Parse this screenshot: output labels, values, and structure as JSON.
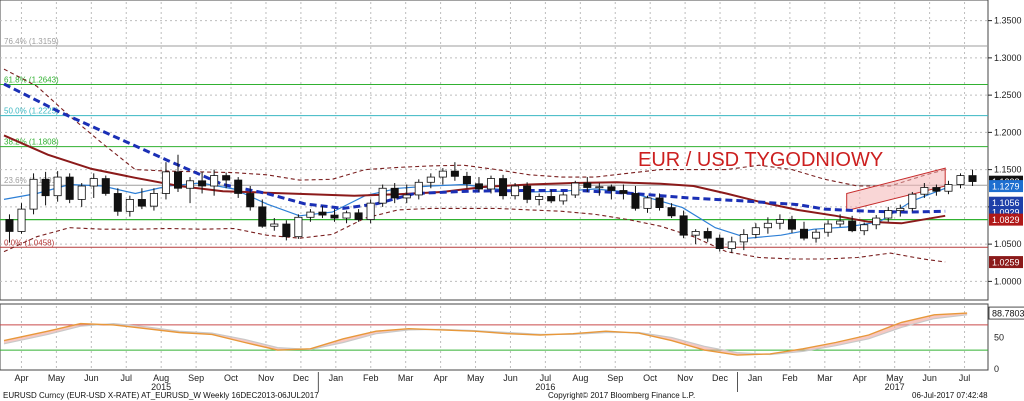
{
  "chart_data": {
    "type": "candlestick",
    "title": "EUR / USD TYGODNIOWY",
    "timeframe": "weekly",
    "ylim": [
      0.975,
      1.375
    ],
    "y_ticks": [
      "1.0000",
      "1.0500",
      "1.1000",
      "1.1500",
      "1.2000",
      "1.2500",
      "1.3000",
      "1.3500"
    ],
    "months": [
      "Apr",
      "May",
      "Jun",
      "Jul",
      "Aug",
      "Sep",
      "Oct",
      "Nov",
      "Dec",
      "Jan",
      "Feb",
      "Mar",
      "Apr",
      "May",
      "Jun",
      "Jul",
      "Aug",
      "Sep",
      "Oct",
      "Nov",
      "Dec",
      "Jan",
      "Feb",
      "Mar",
      "Apr",
      "May",
      "Jun",
      "Jul"
    ],
    "years": [
      "2015",
      "2016",
      "2017"
    ],
    "fib_levels": [
      {
        "label": "76.4% (1.3159)",
        "value": 1.3159,
        "color": "#9e9e9e"
      },
      {
        "label": "61.8% (1.2643)",
        "value": 1.2643,
        "color": "#31b131"
      },
      {
        "label": "50.0% (1.2225)",
        "value": 1.2225,
        "color": "#39b7c2"
      },
      {
        "label": "38.2% (1.1808)",
        "value": 1.1808,
        "color": "#31b131"
      },
      {
        "label": "23.6% (1.1291)",
        "value": 1.1291,
        "color": "#9e9e9e"
      },
      {
        "label": "0.0% (1.0458)",
        "value": 1.0458,
        "color": "#b53a3a"
      }
    ],
    "extra_levels": [
      1.0829
    ],
    "price_badges": [
      {
        "value": 1.1338,
        "label": "1.1338",
        "bg": "#111111",
        "fg": "#ffffff"
      },
      {
        "value": 1.1279,
        "label": "1.1279",
        "bg": "#1e6fd0",
        "fg": "#ffffff"
      },
      {
        "value": 1.1056,
        "label": "1.1056",
        "bg": "#1e3fa8",
        "fg": "#ffffff"
      },
      {
        "value": 1.0929,
        "label": "1.0929",
        "bg": "#1e3fa8",
        "fg": "#ffffff"
      },
      {
        "value": 1.0829,
        "label": "1.0829",
        "bg": "#b01818",
        "fg": "#ffffff"
      },
      {
        "value": 1.0259,
        "label": "1.0259",
        "bg": "#8b1a1a",
        "fg": "#ffffff"
      }
    ],
    "candles": [
      [
        1.083,
        1.09,
        1.052,
        1.067
      ],
      [
        1.067,
        1.105,
        1.064,
        1.097
      ],
      [
        1.097,
        1.145,
        1.09,
        1.137
      ],
      [
        1.137,
        1.147,
        1.102,
        1.115
      ],
      [
        1.115,
        1.148,
        1.107,
        1.14
      ],
      [
        1.14,
        1.145,
        1.105,
        1.11
      ],
      [
        1.11,
        1.132,
        1.1,
        1.128
      ],
      [
        1.128,
        1.145,
        1.112,
        1.138
      ],
      [
        1.138,
        1.142,
        1.115,
        1.118
      ],
      [
        1.118,
        1.125,
        1.088,
        1.094
      ],
      [
        1.094,
        1.115,
        1.087,
        1.11
      ],
      [
        1.11,
        1.125,
        1.097,
        1.101
      ],
      [
        1.101,
        1.125,
        1.095,
        1.118
      ],
      [
        1.118,
        1.16,
        1.11,
        1.147
      ],
      [
        1.147,
        1.17,
        1.12,
        1.125
      ],
      [
        1.125,
        1.14,
        1.105,
        1.135
      ],
      [
        1.135,
        1.147,
        1.118,
        1.128
      ],
      [
        1.128,
        1.15,
        1.115,
        1.142
      ],
      [
        1.142,
        1.146,
        1.125,
        1.136
      ],
      [
        1.136,
        1.14,
        1.112,
        1.118
      ],
      [
        1.118,
        1.128,
        1.095,
        1.1
      ],
      [
        1.1,
        1.11,
        1.072,
        1.074
      ],
      [
        1.074,
        1.085,
        1.068,
        1.077
      ],
      [
        1.077,
        1.082,
        1.055,
        1.06
      ],
      [
        1.06,
        1.09,
        1.057,
        1.086
      ],
      [
        1.086,
        1.097,
        1.08,
        1.093
      ],
      [
        1.093,
        1.101,
        1.085,
        1.089
      ],
      [
        1.089,
        1.097,
        1.08,
        1.085
      ],
      [
        1.085,
        1.095,
        1.078,
        1.092
      ],
      [
        1.092,
        1.097,
        1.08,
        1.083
      ],
      [
        1.083,
        1.11,
        1.078,
        1.105
      ],
      [
        1.105,
        1.13,
        1.1,
        1.125
      ],
      [
        1.125,
        1.132,
        1.105,
        1.112
      ],
      [
        1.112,
        1.13,
        1.105,
        1.116
      ],
      [
        1.116,
        1.137,
        1.11,
        1.133
      ],
      [
        1.133,
        1.145,
        1.125,
        1.14
      ],
      [
        1.14,
        1.152,
        1.13,
        1.148
      ],
      [
        1.148,
        1.16,
        1.135,
        1.141
      ],
      [
        1.141,
        1.147,
        1.125,
        1.131
      ],
      [
        1.131,
        1.14,
        1.12,
        1.124
      ],
      [
        1.124,
        1.142,
        1.118,
        1.138
      ],
      [
        1.138,
        1.143,
        1.11,
        1.115
      ],
      [
        1.115,
        1.132,
        1.11,
        1.128
      ],
      [
        1.128,
        1.133,
        1.105,
        1.11
      ],
      [
        1.11,
        1.118,
        1.102,
        1.114
      ],
      [
        1.114,
        1.123,
        1.105,
        1.108
      ],
      [
        1.108,
        1.12,
        1.103,
        1.116
      ],
      [
        1.116,
        1.135,
        1.112,
        1.132
      ],
      [
        1.132,
        1.14,
        1.12,
        1.126
      ],
      [
        1.126,
        1.132,
        1.115,
        1.127
      ],
      [
        1.127,
        1.13,
        1.11,
        1.122
      ],
      [
        1.122,
        1.13,
        1.11,
        1.118
      ],
      [
        1.118,
        1.128,
        1.095,
        1.098
      ],
      [
        1.098,
        1.115,
        1.092,
        1.112
      ],
      [
        1.112,
        1.118,
        1.095,
        1.099
      ],
      [
        1.099,
        1.105,
        1.085,
        1.088
      ],
      [
        1.088,
        1.095,
        1.058,
        1.062
      ],
      [
        1.062,
        1.07,
        1.05,
        1.067
      ],
      [
        1.067,
        1.072,
        1.053,
        1.058
      ],
      [
        1.058,
        1.063,
        1.04,
        1.044
      ],
      [
        1.044,
        1.06,
        1.038,
        1.053
      ],
      [
        1.053,
        1.07,
        1.042,
        1.063
      ],
      [
        1.063,
        1.078,
        1.058,
        1.072
      ],
      [
        1.072,
        1.086,
        1.064,
        1.078
      ],
      [
        1.078,
        1.09,
        1.07,
        1.083
      ],
      [
        1.083,
        1.088,
        1.065,
        1.07
      ],
      [
        1.07,
        1.08,
        1.055,
        1.058
      ],
      [
        1.058,
        1.07,
        1.052,
        1.066
      ],
      [
        1.066,
        1.082,
        1.06,
        1.077
      ],
      [
        1.077,
        1.09,
        1.073,
        1.081
      ],
      [
        1.081,
        1.088,
        1.066,
        1.068
      ],
      [
        1.068,
        1.079,
        1.062,
        1.076
      ],
      [
        1.076,
        1.089,
        1.07,
        1.085
      ],
      [
        1.085,
        1.1,
        1.08,
        1.095
      ],
      [
        1.095,
        1.103,
        1.087,
        1.098
      ],
      [
        1.098,
        1.12,
        1.094,
        1.117
      ],
      [
        1.117,
        1.132,
        1.112,
        1.126
      ],
      [
        1.126,
        1.13,
        1.115,
        1.121
      ],
      [
        1.121,
        1.135,
        1.117,
        1.13
      ],
      [
        1.13,
        1.145,
        1.125,
        1.142
      ],
      [
        1.142,
        1.15,
        1.128,
        1.134
      ]
    ],
    "ma_blue_dashed": [
      [
        0,
        1.265
      ],
      [
        10,
        1.228
      ],
      [
        20,
        1.195
      ],
      [
        30,
        1.162
      ],
      [
        40,
        1.13
      ],
      [
        48,
        1.118
      ],
      [
        55,
        1.104
      ],
      [
        62,
        1.098
      ],
      [
        68,
        1.104
      ],
      [
        75,
        1.118
      ],
      [
        85,
        1.121
      ],
      [
        95,
        1.122
      ],
      [
        105,
        1.122
      ],
      [
        115,
        1.118
      ],
      [
        125,
        1.112
      ],
      [
        135,
        1.108
      ],
      [
        145,
        1.103
      ],
      [
        150,
        1.097
      ],
      [
        158,
        1.094
      ],
      [
        165,
        1.093
      ],
      [
        172,
        1.094
      ]
    ],
    "ma_red": [
      [
        0,
        1.196
      ],
      [
        8,
        1.17
      ],
      [
        16,
        1.151
      ],
      [
        24,
        1.139
      ],
      [
        32,
        1.128
      ],
      [
        40,
        1.121
      ],
      [
        48,
        1.119
      ],
      [
        56,
        1.117
      ],
      [
        64,
        1.115
      ],
      [
        72,
        1.117
      ],
      [
        80,
        1.12
      ],
      [
        88,
        1.127
      ],
      [
        96,
        1.13
      ],
      [
        104,
        1.132
      ],
      [
        112,
        1.133
      ],
      [
        120,
        1.131
      ],
      [
        126,
        1.128
      ],
      [
        132,
        1.118
      ],
      [
        138,
        1.107
      ],
      [
        145,
        1.096
      ],
      [
        152,
        1.088
      ],
      [
        158,
        1.08
      ],
      [
        164,
        1.078
      ],
      [
        172,
        1.088
      ]
    ],
    "ma_blue_thin": [
      [
        0,
        1.11
      ],
      [
        6,
        1.118
      ],
      [
        12,
        1.13
      ],
      [
        18,
        1.128
      ],
      [
        24,
        1.118
      ],
      [
        30,
        1.128
      ],
      [
        36,
        1.132
      ],
      [
        42,
        1.124
      ],
      [
        48,
        1.104
      ],
      [
        54,
        1.088
      ],
      [
        60,
        1.093
      ],
      [
        66,
        1.115
      ],
      [
        72,
        1.125
      ],
      [
        78,
        1.128
      ],
      [
        84,
        1.13
      ],
      [
        90,
        1.124
      ],
      [
        96,
        1.12
      ],
      [
        102,
        1.121
      ],
      [
        108,
        1.124
      ],
      [
        114,
        1.12
      ],
      [
        118,
        1.112
      ],
      [
        124,
        1.099
      ],
      [
        130,
        1.072
      ],
      [
        136,
        1.058
      ],
      [
        142,
        1.062
      ],
      [
        148,
        1.07
      ],
      [
        154,
        1.073
      ],
      [
        160,
        1.08
      ],
      [
        166,
        1.108
      ],
      [
        172,
        1.125
      ]
    ],
    "band_upper": [
      [
        0,
        1.285
      ],
      [
        6,
        1.262
      ],
      [
        12,
        1.222
      ],
      [
        18,
        1.185
      ],
      [
        24,
        1.15
      ],
      [
        30,
        1.148
      ],
      [
        36,
        1.147
      ],
      [
        42,
        1.146
      ],
      [
        48,
        1.143
      ],
      [
        54,
        1.136
      ],
      [
        60,
        1.137
      ],
      [
        66,
        1.15
      ],
      [
        72,
        1.153
      ],
      [
        78,
        1.155
      ],
      [
        84,
        1.156
      ],
      [
        90,
        1.15
      ],
      [
        96,
        1.143
      ],
      [
        102,
        1.14
      ],
      [
        108,
        1.14
      ],
      [
        114,
        1.145
      ],
      [
        120,
        1.15
      ],
      [
        126,
        1.15
      ],
      [
        132,
        1.15
      ],
      [
        138,
        1.156
      ],
      [
        144,
        1.15
      ],
      [
        150,
        1.137
      ],
      [
        156,
        1.128
      ],
      [
        162,
        1.128
      ],
      [
        168,
        1.142
      ],
      [
        172,
        1.15
      ]
    ],
    "band_lower": [
      [
        0,
        1.04
      ],
      [
        6,
        1.06
      ],
      [
        12,
        1.072
      ],
      [
        18,
        1.07
      ],
      [
        24,
        1.07
      ],
      [
        30,
        1.071
      ],
      [
        36,
        1.07
      ],
      [
        42,
        1.071
      ],
      [
        48,
        1.062
      ],
      [
        54,
        1.058
      ],
      [
        60,
        1.063
      ],
      [
        66,
        1.085
      ],
      [
        72,
        1.096
      ],
      [
        78,
        1.098
      ],
      [
        84,
        1.098
      ],
      [
        90,
        1.098
      ],
      [
        96,
        1.096
      ],
      [
        102,
        1.094
      ],
      [
        108,
        1.09
      ],
      [
        114,
        1.083
      ],
      [
        120,
        1.074
      ],
      [
        126,
        1.06
      ],
      [
        132,
        1.04
      ],
      [
        138,
        1.032
      ],
      [
        144,
        1.03
      ],
      [
        150,
        1.03
      ],
      [
        156,
        1.032
      ],
      [
        162,
        1.038
      ],
      [
        168,
        1.03
      ],
      [
        172,
        1.026
      ]
    ],
    "channel": {
      "from": [
        154,
        1.095,
        1.118
      ],
      "to": [
        172,
        1.128,
        1.152
      ]
    },
    "oscillator": {
      "ylim": [
        0,
        100
      ],
      "y_ticks": [
        "0",
        "50"
      ],
      "last": 88.7803,
      "last_label": "88.7803",
      "upper_line": 70,
      "lower_line": 30,
      "values": [
        [
          0,
          45
        ],
        [
          8,
          60
        ],
        [
          14,
          72
        ],
        [
          20,
          70
        ],
        [
          26,
          64
        ],
        [
          32,
          58
        ],
        [
          38,
          55
        ],
        [
          44,
          42
        ],
        [
          50,
          30
        ],
        [
          56,
          32
        ],
        [
          62,
          48
        ],
        [
          68,
          60
        ],
        [
          74,
          64
        ],
        [
          80,
          62
        ],
        [
          86,
          60
        ],
        [
          92,
          56
        ],
        [
          98,
          54
        ],
        [
          104,
          56
        ],
        [
          110,
          60
        ],
        [
          116,
          57
        ],
        [
          122,
          45
        ],
        [
          128,
          30
        ],
        [
          134,
          22
        ],
        [
          140,
          24
        ],
        [
          146,
          32
        ],
        [
          152,
          42
        ],
        [
          158,
          54
        ],
        [
          164,
          74
        ],
        [
          170,
          86
        ],
        [
          176,
          88.78
        ]
      ],
      "signal": [
        [
          0,
          40
        ],
        [
          8,
          55
        ],
        [
          14,
          68
        ],
        [
          20,
          72
        ],
        [
          26,
          67
        ],
        [
          32,
          60
        ],
        [
          38,
          57
        ],
        [
          44,
          47
        ],
        [
          50,
          34
        ],
        [
          56,
          31
        ],
        [
          62,
          42
        ],
        [
          68,
          56
        ],
        [
          74,
          62
        ],
        [
          80,
          63
        ],
        [
          86,
          61
        ],
        [
          92,
          58
        ],
        [
          98,
          55
        ],
        [
          104,
          55
        ],
        [
          110,
          58
        ],
        [
          116,
          58
        ],
        [
          122,
          50
        ],
        [
          128,
          36
        ],
        [
          134,
          26
        ],
        [
          140,
          23
        ],
        [
          146,
          28
        ],
        [
          152,
          37
        ],
        [
          158,
          48
        ],
        [
          164,
          66
        ],
        [
          170,
          80
        ],
        [
          176,
          86
        ]
      ]
    }
  },
  "footer": {
    "left": "EURUSD Curncy (EUR-USD X-RATE) AT_EURUSD_W  Weekly 16DEC2013-06JUL2017",
    "center": "Copyright© 2017 Bloomberg Finance L.P.",
    "right": "06-Jul-2017 07:42:48"
  },
  "colors": {
    "bull_body": "#ffffff",
    "bear_body": "#111111",
    "wick": "#111111",
    "ma_blue_dashed": "#1a2fb5",
    "ma_red": "#8b1a1a",
    "ma_blue_thin": "#2d7fd6",
    "band": "#7a1f1f",
    "channel_fill": "#f4b4b4",
    "channel_stroke": "#c62b2b",
    "osc_line": "#e8983a",
    "osc_fill_over": "#f0a49a",
    "osc_fill_gray": "#bfbfbf",
    "osc_signal": "#c9c9c9",
    "level_1_0829": "#31b131"
  }
}
